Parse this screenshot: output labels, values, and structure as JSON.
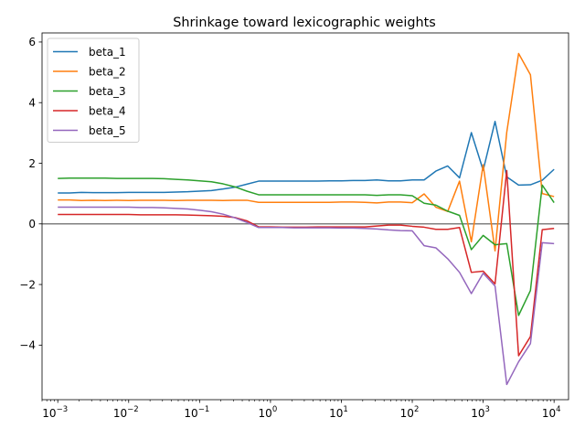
{
  "chart_data": {
    "type": "line",
    "title": "Shrinkage toward lexicographic weights",
    "xlabel": "",
    "ylabel": "",
    "xscale": "log",
    "xlim": [
      0.0006,
      16000
    ],
    "ylim": [
      -5.8,
      6.3
    ],
    "xticks": [
      {
        "value": 0.001,
        "base": "10",
        "exp": "−3"
      },
      {
        "value": 0.01,
        "base": "10",
        "exp": "−2"
      },
      {
        "value": 0.1,
        "base": "10",
        "exp": "−1"
      },
      {
        "value": 1,
        "base": "10",
        "exp": "0"
      },
      {
        "value": 10,
        "base": "10",
        "exp": "1"
      },
      {
        "value": 100,
        "base": "10",
        "exp": "2"
      },
      {
        "value": 1000,
        "base": "10",
        "exp": "3"
      },
      {
        "value": 10000,
        "base": "10",
        "exp": "4"
      }
    ],
    "yticks": [
      {
        "value": 6,
        "label": "6"
      },
      {
        "value": 4,
        "label": "4"
      },
      {
        "value": 2,
        "label": "2"
      },
      {
        "value": 0,
        "label": "0"
      },
      {
        "value": -2,
        "label": "−2"
      },
      {
        "value": -4,
        "label": "−4"
      }
    ],
    "reference_line": {
      "y": 0,
      "color": "#808080"
    },
    "legend_position": "upper-left",
    "grid": false,
    "x": [
      0.001,
      0.00147,
      0.00215,
      0.00316,
      0.00464,
      0.00681,
      0.01,
      0.0147,
      0.0215,
      0.0316,
      0.0464,
      0.0681,
      0.1,
      0.147,
      0.215,
      0.316,
      0.464,
      0.681,
      1,
      1.47,
      2.15,
      3.16,
      4.64,
      6.81,
      10,
      14.7,
      21.5,
      31.6,
      46.4,
      68.1,
      100,
      147,
      215,
      316,
      464,
      681,
      1000,
      1470,
      2150,
      3160,
      4640,
      6810,
      10000
    ],
    "series": [
      {
        "name": "beta_1",
        "color": "#1f77b4",
        "values": [
          1.02,
          1.02,
          1.04,
          1.03,
          1.03,
          1.03,
          1.04,
          1.04,
          1.04,
          1.04,
          1.05,
          1.06,
          1.08,
          1.1,
          1.15,
          1.21,
          1.31,
          1.41,
          1.41,
          1.41,
          1.41,
          1.41,
          1.41,
          1.42,
          1.42,
          1.43,
          1.43,
          1.45,
          1.42,
          1.42,
          1.45,
          1.45,
          1.74,
          1.91,
          1.52,
          3.01,
          1.77,
          3.38,
          1.55,
          1.28,
          1.29,
          1.44,
          1.8
        ]
      },
      {
        "name": "beta_2",
        "color": "#ff7f0e",
        "values": [
          0.79,
          0.79,
          0.77,
          0.78,
          0.77,
          0.78,
          0.77,
          0.78,
          0.78,
          0.78,
          0.77,
          0.78,
          0.78,
          0.78,
          0.77,
          0.78,
          0.78,
          0.71,
          0.71,
          0.71,
          0.71,
          0.71,
          0.71,
          0.71,
          0.72,
          0.72,
          0.71,
          0.69,
          0.72,
          0.72,
          0.7,
          0.99,
          0.55,
          0.41,
          1.41,
          -0.59,
          1.95,
          -0.89,
          3.02,
          5.62,
          4.92,
          1.0,
          0.9
        ]
      },
      {
        "name": "beta_3",
        "color": "#2ca02c",
        "values": [
          1.5,
          1.51,
          1.51,
          1.51,
          1.51,
          1.5,
          1.5,
          1.5,
          1.5,
          1.49,
          1.47,
          1.45,
          1.42,
          1.39,
          1.32,
          1.22,
          1.08,
          0.96,
          0.96,
          0.96,
          0.96,
          0.96,
          0.96,
          0.96,
          0.96,
          0.96,
          0.96,
          0.94,
          0.96,
          0.96,
          0.93,
          0.68,
          0.62,
          0.42,
          0.28,
          -0.85,
          -0.38,
          -0.69,
          -0.65,
          -3.02,
          -2.2,
          1.28,
          0.7
        ]
      },
      {
        "name": "beta_4",
        "color": "#d62728",
        "values": [
          0.31,
          0.31,
          0.31,
          0.31,
          0.31,
          0.31,
          0.31,
          0.3,
          0.3,
          0.3,
          0.3,
          0.29,
          0.28,
          0.27,
          0.25,
          0.21,
          0.1,
          -0.1,
          -0.1,
          -0.11,
          -0.11,
          -0.11,
          -0.1,
          -0.1,
          -0.1,
          -0.1,
          -0.1,
          -0.07,
          -0.04,
          -0.04,
          -0.08,
          -0.11,
          -0.18,
          -0.18,
          -0.12,
          -1.6,
          -1.56,
          -1.98,
          1.76,
          -4.35,
          -3.72,
          -0.19,
          -0.15
        ]
      },
      {
        "name": "beta_5",
        "color": "#9467bd",
        "values": [
          0.55,
          0.55,
          0.55,
          0.55,
          0.55,
          0.55,
          0.55,
          0.54,
          0.54,
          0.53,
          0.51,
          0.49,
          0.45,
          0.4,
          0.32,
          0.2,
          0.05,
          -0.12,
          -0.12,
          -0.12,
          -0.13,
          -0.13,
          -0.13,
          -0.13,
          -0.14,
          -0.14,
          -0.15,
          -0.17,
          -0.2,
          -0.22,
          -0.23,
          -0.72,
          -0.79,
          -1.15,
          -1.6,
          -2.3,
          -1.63,
          -2.05,
          -5.3,
          -4.55,
          -3.95,
          -0.62,
          -0.65
        ]
      }
    ]
  }
}
